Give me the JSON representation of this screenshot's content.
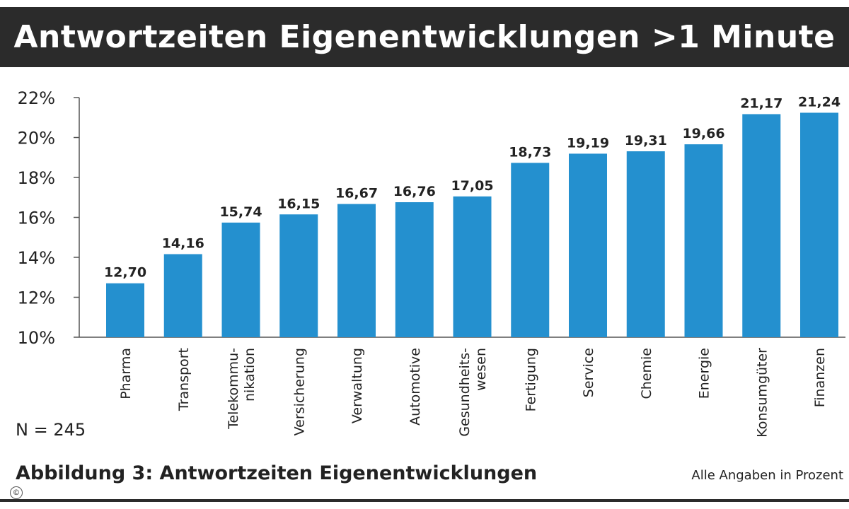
{
  "title": "Antwortzeiten Eigenentwicklungen >1 Minute",
  "footer": {
    "sample_size": "N = 245",
    "caption": "Abbildung 3: Antwortzeiten Eigenentwicklungen",
    "note": "Alle Angaben in Prozent",
    "copyright_symbol": "©"
  },
  "colors": {
    "bar": "#2490cf",
    "title_bg": "#2b2b2b",
    "axis": "#555555"
  },
  "chart_data": {
    "type": "bar",
    "title": "Antwortzeiten Eigenentwicklungen >1 Minute",
    "xlabel": "",
    "ylabel": "",
    "ylim": [
      10,
      22
    ],
    "yticks": [
      "10%",
      "12%",
      "14%",
      "16%",
      "18%",
      "20%",
      "22%"
    ],
    "grid": false,
    "categories": [
      "Pharma",
      "Transport",
      "Telekommu-\nnikation",
      "Versicherung",
      "Verwaltung",
      "Automotive",
      "Gesundheits-\nwesen",
      "Fertigung",
      "Service",
      "Chemie",
      "Energie",
      "Konsumgüter",
      "Finanzen"
    ],
    "values": [
      12.7,
      14.16,
      15.74,
      16.15,
      16.67,
      16.76,
      17.05,
      18.73,
      19.19,
      19.31,
      19.66,
      21.17,
      21.24
    ],
    "value_labels": [
      "12,70",
      "14,16",
      "15,74",
      "16,15",
      "16,67",
      "16,76",
      "17,05",
      "18,73",
      "19,19",
      "19,31",
      "19,66",
      "21,17",
      "21,24"
    ]
  }
}
